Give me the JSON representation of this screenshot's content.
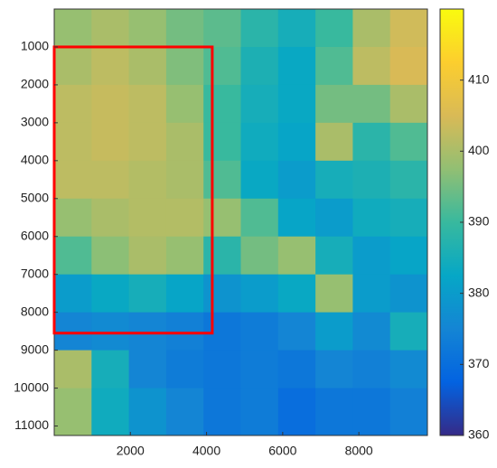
{
  "chart_data": {
    "type": "heatmap",
    "x_edges": [
      0,
      980,
      1960,
      2940,
      3920,
      4900,
      5880,
      6860,
      7840,
      8820,
      9800
    ],
    "y_edges": [
      0,
      1000,
      2000,
      3000,
      4000,
      5000,
      6000,
      7000,
      8000,
      9000,
      10000,
      11250
    ],
    "values": [
      [
        398,
        400,
        398,
        395,
        393,
        388,
        385,
        390,
        400,
        404
      ],
      [
        400,
        402,
        400,
        396,
        392,
        386,
        383,
        392,
        402,
        405
      ],
      [
        402,
        403,
        402,
        398,
        390,
        385,
        383,
        395,
        395,
        400
      ],
      [
        402,
        403,
        402,
        400,
        390,
        384,
        382,
        400,
        388,
        392
      ],
      [
        402,
        402,
        401,
        400,
        392,
        383,
        380,
        385,
        386,
        388
      ],
      [
        398,
        400,
        401,
        401,
        398,
        392,
        382,
        380,
        384,
        385
      ],
      [
        392,
        397,
        400,
        398,
        388,
        395,
        398,
        385,
        380,
        382
      ],
      [
        380,
        383,
        385,
        382,
        378,
        380,
        383,
        398,
        380,
        378
      ],
      [
        375,
        376,
        375,
        374,
        372,
        373,
        375,
        380,
        376,
        385
      ],
      [
        400,
        385,
        375,
        373,
        372,
        373,
        372,
        375,
        374,
        376
      ],
      [
        398,
        384,
        378,
        375,
        372,
        373,
        370,
        372,
        372,
        374
      ]
    ],
    "xlim": [
      0,
      9800
    ],
    "xticks": [
      2000,
      4000,
      6000,
      8000
    ],
    "ylim": [
      11250,
      0
    ],
    "yticks": [
      1000,
      2000,
      3000,
      4000,
      5000,
      6000,
      7000,
      8000,
      9000,
      10000,
      11000
    ],
    "clim": [
      360,
      420
    ],
    "cticks": [
      360,
      370,
      380,
      390,
      400,
      410
    ],
    "colormap": "parula",
    "rectangle": {
      "x": [
        0,
        4150
      ],
      "y": [
        1000,
        8550
      ],
      "color": "#ff0000"
    }
  }
}
